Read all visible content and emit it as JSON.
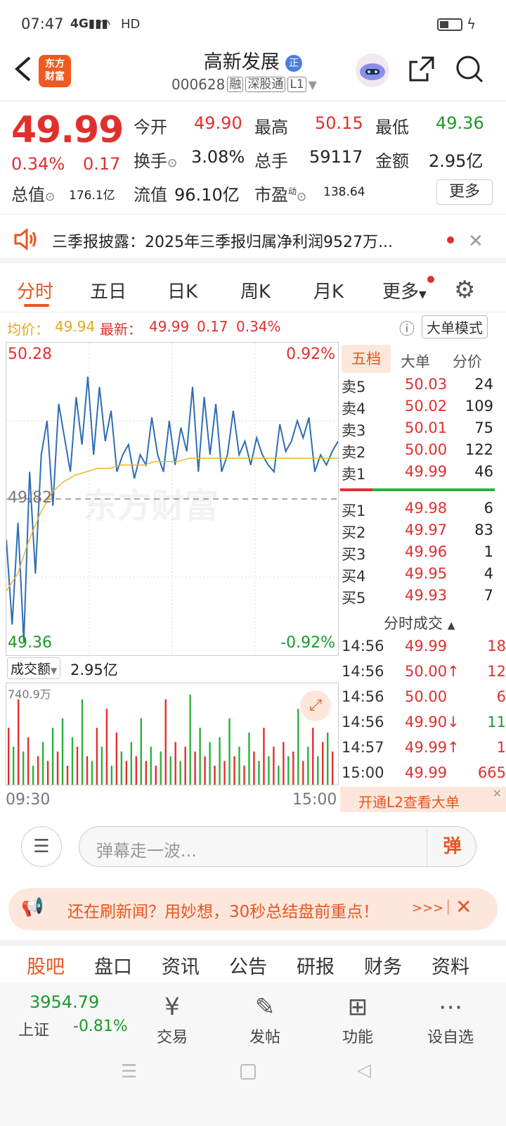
{
  "status": {
    "time": "07:47",
    "network": "4G",
    "hd": "HD"
  },
  "header": {
    "logo_line1": "东方",
    "logo_line2": "财富",
    "title": "高新发展",
    "badge": "正",
    "code": "000628",
    "tags": [
      "融",
      "深股通",
      "L1"
    ]
  },
  "quote": {
    "price": "49.99",
    "change_pct": "0.34%",
    "change": "0.17",
    "open_label": "今开",
    "open": "49.90",
    "high_label": "最高",
    "high": "50.15",
    "low_label": "最低",
    "low": "49.36",
    "turnover_label": "换手",
    "turnover": "3.08%",
    "volume_label": "总手",
    "volume": "59117",
    "amount_label": "金额",
    "amount": "2.95亿",
    "mcap_label": "总值",
    "mcap": "176.1亿",
    "float_label": "流值",
    "float": "96.10亿",
    "pe_label": "市盈",
    "pe_sup": "动",
    "pe": "138.64",
    "more": "更多"
  },
  "news": {
    "text": "三季报披露：2025年三季报归属净利润9527万..."
  },
  "tabs": [
    "分时",
    "五日",
    "日K",
    "周K",
    "月K",
    "更多"
  ],
  "avg_row": {
    "avg_label": "均价：",
    "avg": "49.94",
    "latest_label": "最新：",
    "latest": "49.99",
    "chg": "0.17",
    "pct": "0.34%",
    "mode_btn": "大单模式"
  },
  "chart_labels": {
    "top_left": "50.28",
    "top_right": "0.92%",
    "mid": "49.82",
    "bot_left": "49.36",
    "bot_right": "-0.92%",
    "watermark": "东方财富",
    "vol_label": "成交额",
    "vol_total": "2.95亿",
    "vol_max": "740.9万",
    "t_start": "09:30",
    "t_end": "15:00"
  },
  "chart_data": {
    "type": "line",
    "ylim": [
      49.36,
      50.28
    ],
    "prev_close": 49.82,
    "series": [
      {
        "values": [
          49.7,
          49.45,
          49.75,
          49.4,
          49.9,
          49.6,
          49.95,
          50.05,
          49.8,
          50.1,
          50.0,
          49.9,
          50.12,
          49.98,
          50.18,
          49.95,
          50.15,
          49.99,
          50.08,
          49.9,
          49.95,
          49.98,
          49.88,
          49.95,
          49.92,
          50.06,
          49.95,
          49.9,
          50.05,
          49.92,
          50.03,
          49.96,
          50.15,
          49.9,
          50.12,
          49.95,
          50.1,
          49.9,
          49.95,
          50.08,
          49.95,
          49.99,
          49.92,
          50.0,
          49.95,
          49.92,
          49.9,
          50.04,
          49.96,
          49.99,
          50.05,
          50.0,
          50.06,
          49.9,
          49.95,
          49.92,
          49.96,
          49.99
        ]
      },
      {
        "values": [
          49.55,
          49.6,
          49.7,
          49.78,
          49.84,
          49.87,
          49.89,
          49.9,
          49.91,
          49.91,
          49.92,
          49.92,
          49.92,
          49.93,
          49.93,
          49.93,
          49.94,
          49.94,
          49.94,
          49.94,
          49.94,
          49.94,
          49.94,
          49.94,
          49.94,
          49.94,
          49.94,
          49.94,
          49.94,
          49.94
        ]
      }
    ]
  },
  "volumes": [
    60,
    40,
    90,
    35,
    50,
    20,
    30,
    45,
    25,
    60,
    35,
    70,
    20,
    50,
    40,
    90,
    30,
    25,
    60,
    40,
    80,
    20,
    55,
    35,
    25,
    45,
    30,
    70,
    25,
    40,
    20,
    35,
    90,
    30,
    45,
    25,
    40,
    95,
    35,
    60,
    30,
    45,
    20,
    50,
    25,
    70,
    30,
    40,
    20,
    55,
    35,
    25,
    60,
    30,
    40,
    20,
    45,
    30,
    35,
    80,
    25,
    40,
    60,
    30,
    45,
    55,
    35
  ],
  "order_book": {
    "tabs": [
      "五档",
      "大单",
      "分价"
    ],
    "asks": [
      {
        "l": "卖5",
        "p": "50.03",
        "v": "24"
      },
      {
        "l": "卖4",
        "p": "50.02",
        "v": "109"
      },
      {
        "l": "卖3",
        "p": "50.01",
        "v": "75"
      },
      {
        "l": "卖2",
        "p": "50.00",
        "v": "122"
      },
      {
        "l": "卖1",
        "p": "49.99",
        "v": "46"
      }
    ],
    "bids": [
      {
        "l": "买1",
        "p": "49.98",
        "v": "6"
      },
      {
        "l": "买2",
        "p": "49.97",
        "v": "83"
      },
      {
        "l": "买3",
        "p": "49.96",
        "v": "1"
      },
      {
        "l": "买4",
        "p": "49.95",
        "v": "4"
      },
      {
        "l": "买5",
        "p": "49.93",
        "v": "7"
      }
    ],
    "trades_title": "分时成交",
    "trades": [
      {
        "t": "14:56",
        "p": "49.99",
        "v": "18",
        "d": ""
      },
      {
        "t": "14:56",
        "p": "50.00↑",
        "v": "12",
        "d": "r"
      },
      {
        "t": "14:56",
        "p": "50.00",
        "v": "6",
        "d": ""
      },
      {
        "t": "14:56",
        "p": "49.90↓",
        "v": "11",
        "d": "g"
      },
      {
        "t": "14:57",
        "p": "49.99↑",
        "v": "1",
        "d": "r"
      },
      {
        "t": "15:00",
        "p": "49.99",
        "v": "665",
        "d": ""
      }
    ],
    "l2": "开通L2查看大单"
  },
  "comment": {
    "placeholder": "弹幕走一波...",
    "send": "弹"
  },
  "promo": {
    "text": "还在刷新闻？用妙想，30秒总结盘前重点！",
    "arrows": ">>>"
  },
  "subtabs": [
    "股吧",
    "盘口",
    "资讯",
    "公告",
    "研报",
    "财务",
    "资料"
  ],
  "nav": {
    "index_value": "3954.79",
    "index_name": "上证",
    "index_pct": "-0.81%",
    "items": [
      "交易",
      "发帖",
      "功能",
      "设自选"
    ]
  }
}
